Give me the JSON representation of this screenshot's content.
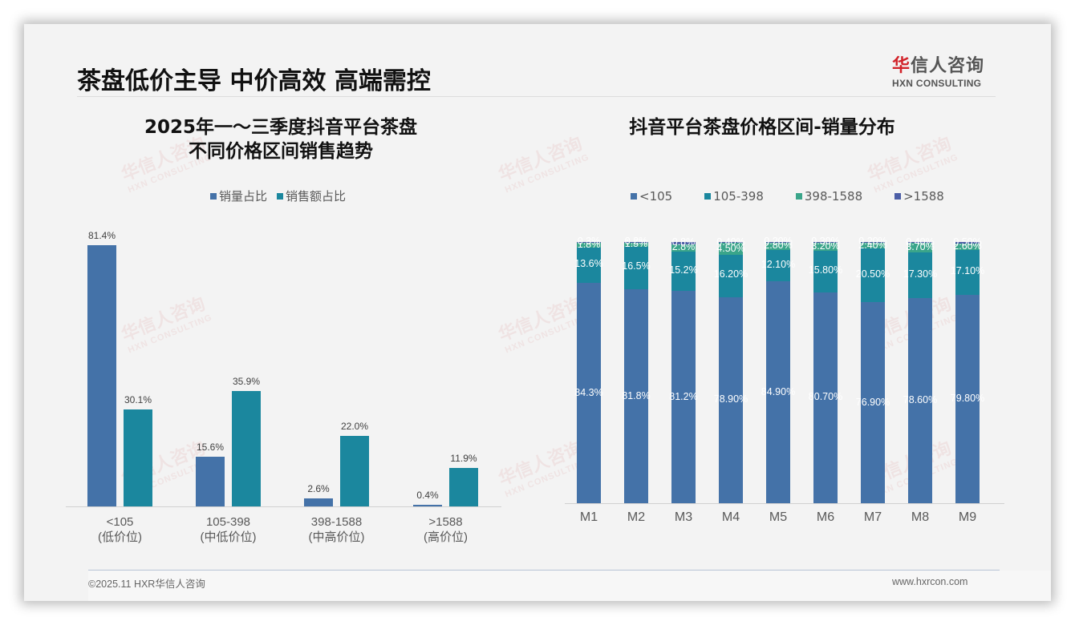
{
  "page": {
    "title": "茶盘低价主导 中价高效 高端需控",
    "logo": {
      "cn_prefix": "华",
      "cn_rest": "信人咨询",
      "en": "HXN CONSULTING"
    },
    "footer": {
      "left": "©2025.11 HXR华信人咨询",
      "right": "www.hxrcon.com"
    },
    "watermark": {
      "cn": "华信人咨询",
      "en": "HXN CONSULTING"
    }
  },
  "colors": {
    "blue": "#4472a8",
    "teal": "#1b879e",
    "green": "#3aa58a",
    "navy": "#4c5ea6"
  },
  "chart_data": [
    {
      "type": "bar",
      "title": "2025年一～三季度抖音平台茶盘不同价格区间销售趋势",
      "title_lines": [
        "2025年一～三季度抖音平台茶盘",
        "不同价格区间销售趋势"
      ],
      "categories": [
        "<105",
        "105-398",
        "398-1588",
        ">1588"
      ],
      "category_sublabels": [
        "(低价位)",
        "(中低价位)",
        "(中高价位)",
        "(高价位)"
      ],
      "series": [
        {
          "name": "销量占比",
          "values": [
            81.4,
            15.6,
            2.6,
            0.4
          ],
          "labels": [
            "81.4%",
            "15.6%",
            "2.6%",
            "0.4%"
          ]
        },
        {
          "name": "销售额占比",
          "values": [
            30.1,
            35.9,
            22.0,
            11.9
          ],
          "labels": [
            "30.1%",
            "35.9%",
            "22.0%",
            "11.9%"
          ]
        }
      ],
      "legend_position": "top",
      "grid": false,
      "ylim": [
        0,
        85
      ]
    },
    {
      "type": "bar",
      "stacked": true,
      "title": "抖音平台茶盘价格区间-销量分布",
      "categories": [
        "M1",
        "M2",
        "M3",
        "M4",
        "M5",
        "M6",
        "M7",
        "M8",
        "M9"
      ],
      "series": [
        {
          "name": "<105",
          "values": [
            84.3,
            81.8,
            81.2,
            78.9,
            84.9,
            80.7,
            76.9,
            78.6,
            79.8
          ],
          "labels": [
            "84.3%",
            "81.8%",
            "81.2%",
            "78.90%",
            "84.90%",
            "80.70%",
            "76.90%",
            "78.60%",
            "79.80%"
          ]
        },
        {
          "name": "105-398",
          "values": [
            13.6,
            16.5,
            15.2,
            16.2,
            12.1,
            15.8,
            20.5,
            17.3,
            17.1
          ],
          "labels": [
            "13.6%",
            "16.5%",
            "15.2%",
            "16.20%",
            "12.10%",
            "15.80%",
            "20.50%",
            "17.30%",
            "17.10%"
          ]
        },
        {
          "name": "398-1588",
          "values": [
            1.8,
            1.5,
            2.8,
            4.5,
            2.8,
            3.2,
            2.4,
            3.7,
            2.6
          ],
          "labels": [
            "1.8%",
            "1.5%",
            "2.8%",
            "4.50%",
            "2.80%",
            "3.20%",
            "2.40%",
            "3.70%",
            "2.60%"
          ]
        },
        {
          "name": ">1588",
          "values": [
            0.3,
            0.2,
            0.8,
            0.4,
            0.2,
            0.3,
            0.2,
            0.4,
            0.5
          ],
          "labels": [
            "0.3%",
            "0.2%",
            "0.8%",
            "0.40%",
            "0.20%",
            "0.30%",
            "0.20%",
            "0.40%",
            "0.50%"
          ]
        }
      ],
      "legend_position": "top",
      "grid": false,
      "ylim": [
        0,
        100
      ]
    }
  ]
}
